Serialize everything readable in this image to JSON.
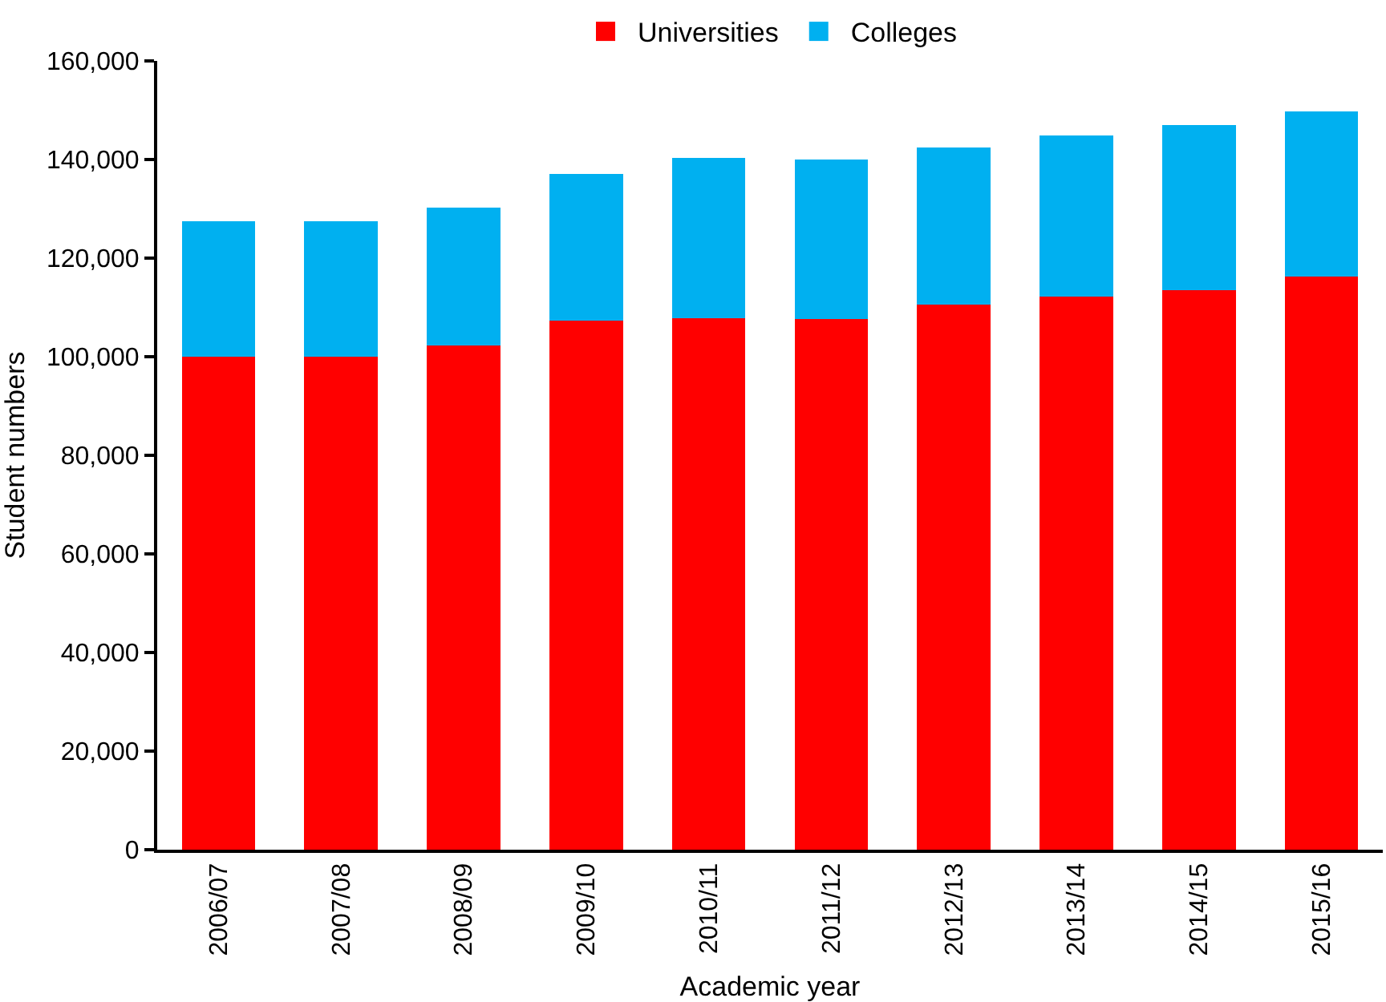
{
  "chart_data": {
    "type": "bar",
    "stacked": true,
    "xlabel": "Academic year",
    "ylabel": "Student numbers",
    "categories": [
      "2006/07",
      "2007/08",
      "2008/09",
      "2009/10",
      "2010/11",
      "2011/12",
      "2012/13",
      "2013/14",
      "2014/15",
      "2015/16"
    ],
    "series": [
      {
        "name": "Universities",
        "color": "#ff0000",
        "values": [
          100000,
          100000,
          102300,
          107400,
          107800,
          107700,
          110500,
          112200,
          113500,
          116300
        ]
      },
      {
        "name": "Colleges",
        "color": "#00b0f0",
        "values": [
          27500,
          27500,
          28000,
          29600,
          32600,
          32300,
          32000,
          32700,
          33500,
          33400
        ]
      }
    ],
    "ylim": [
      0,
      160000
    ],
    "yticks": [
      {
        "value": 0,
        "label": "0"
      },
      {
        "value": 20000,
        "label": "20,000"
      },
      {
        "value": 40000,
        "label": "40,000"
      },
      {
        "value": 60000,
        "label": "60,000"
      },
      {
        "value": 80000,
        "label": "80,000"
      },
      {
        "value": 100000,
        "label": "100,000"
      },
      {
        "value": 120000,
        "label": "120,000"
      },
      {
        "value": 140000,
        "label": "140,000"
      },
      {
        "value": 160000,
        "label": "160,000"
      }
    ],
    "legend": "top"
  }
}
